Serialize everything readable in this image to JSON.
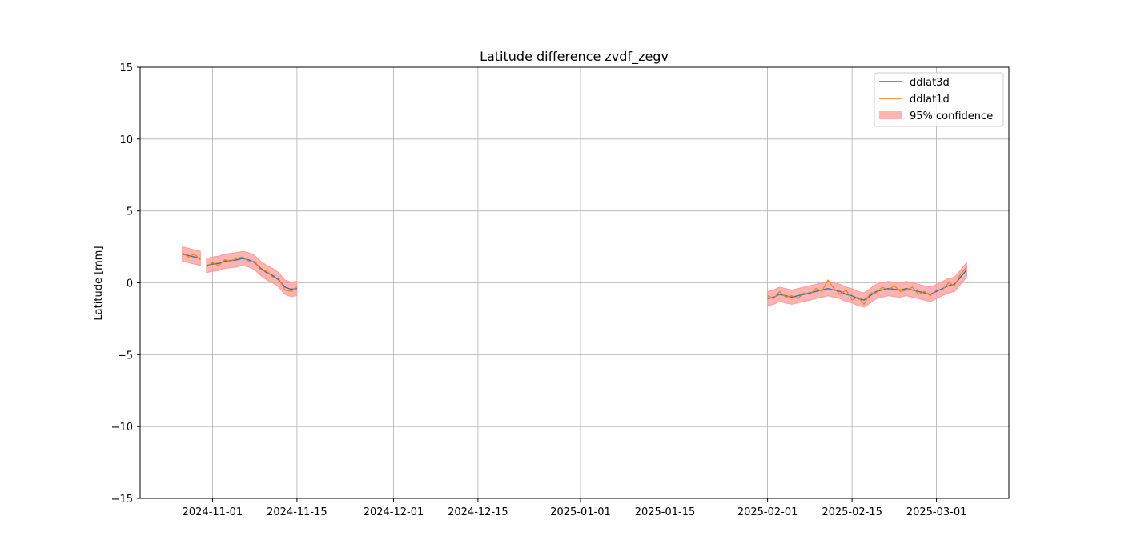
{
  "chart_data": {
    "type": "line",
    "title": "Latitude difference zvdf_zegv",
    "xlabel": "",
    "ylabel": "Latitude [mm]",
    "x_type": "date",
    "xlim": [
      "2024-10-20",
      "2025-03-13"
    ],
    "ylim": [
      -15,
      15
    ],
    "grid": true,
    "legend_position": "top-right",
    "x_ticks": [
      "2024-11-01",
      "2024-11-15",
      "2024-12-01",
      "2024-12-15",
      "2025-01-01",
      "2025-01-15",
      "2025-02-01",
      "2025-02-15",
      "2025-03-01"
    ],
    "y_ticks": [
      15,
      10,
      5,
      0,
      -5,
      -10,
      -15
    ],
    "y_tick_labels": [
      "15",
      "10",
      "5",
      "0",
      "−5",
      "−10",
      "−15"
    ],
    "colors": {
      "ddlat3d": "#1f77b4",
      "ddlat1d": "#ff7f0e",
      "confidence": "#ff9999"
    },
    "legend": [
      "ddlat3d",
      "ddlat1d",
      "95% confidence"
    ],
    "segments": [
      {
        "x": [
          "2024-10-27",
          "2024-10-28",
          "2024-10-29",
          "2024-10-30"
        ],
        "ddlat3d": [
          2.0,
          1.9,
          1.8,
          1.7
        ],
        "ddlat1d": [
          2.1,
          1.8,
          2.0,
          1.6
        ],
        "lower": [
          1.5,
          1.4,
          1.3,
          1.2
        ],
        "upper": [
          2.5,
          2.4,
          2.3,
          2.2
        ]
      },
      {
        "x": [
          "2024-10-31",
          "2024-11-01",
          "2024-11-02",
          "2024-11-03",
          "2024-11-04",
          "2024-11-05",
          "2024-11-06",
          "2024-11-07",
          "2024-11-08",
          "2024-11-09",
          "2024-11-10",
          "2024-11-11",
          "2024-11-12",
          "2024-11-13",
          "2024-11-14",
          "2024-11-15"
        ],
        "ddlat3d": [
          1.2,
          1.3,
          1.35,
          1.5,
          1.55,
          1.6,
          1.7,
          1.6,
          1.4,
          1.0,
          0.7,
          0.5,
          0.2,
          -0.3,
          -0.45,
          -0.4
        ],
        "ddlat1d": [
          1.1,
          1.4,
          1.2,
          1.6,
          1.5,
          1.7,
          1.8,
          1.5,
          1.5,
          0.9,
          0.8,
          0.4,
          0.3,
          -0.5,
          -0.6,
          -0.3
        ],
        "lower": [
          0.7,
          0.8,
          0.85,
          1.0,
          1.05,
          1.1,
          1.2,
          1.1,
          0.9,
          0.5,
          0.2,
          0.0,
          -0.3,
          -0.8,
          -0.95,
          -0.9
        ],
        "upper": [
          1.7,
          1.8,
          1.85,
          2.0,
          2.05,
          2.1,
          2.2,
          2.1,
          1.9,
          1.5,
          1.2,
          1.0,
          0.7,
          0.2,
          0.05,
          0.1
        ]
      },
      {
        "x": [
          "2025-02-01",
          "2025-02-02",
          "2025-02-03",
          "2025-02-04",
          "2025-02-05",
          "2025-02-06",
          "2025-02-07",
          "2025-02-08",
          "2025-02-09",
          "2025-02-10",
          "2025-02-11",
          "2025-02-12",
          "2025-02-13",
          "2025-02-14",
          "2025-02-15",
          "2025-02-16",
          "2025-02-17",
          "2025-02-18",
          "2025-02-19",
          "2025-02-20",
          "2025-02-21",
          "2025-02-22",
          "2025-02-23",
          "2025-02-24",
          "2025-02-25",
          "2025-02-26",
          "2025-02-27",
          "2025-02-28",
          "2025-03-01",
          "2025-03-02",
          "2025-03-03",
          "2025-03-04",
          "2025-03-05",
          "2025-03-06"
        ],
        "ddlat3d": [
          -1.1,
          -1.0,
          -0.8,
          -0.9,
          -1.0,
          -0.9,
          -0.8,
          -0.7,
          -0.6,
          -0.5,
          -0.4,
          -0.5,
          -0.6,
          -0.8,
          -0.9,
          -1.1,
          -1.2,
          -0.9,
          -0.6,
          -0.5,
          -0.4,
          -0.45,
          -0.5,
          -0.4,
          -0.5,
          -0.6,
          -0.7,
          -0.8,
          -0.6,
          -0.4,
          -0.2,
          -0.1,
          0.4,
          0.9
        ],
        "ddlat1d": [
          -0.9,
          -1.1,
          -0.6,
          -1.0,
          -0.9,
          -1.1,
          -0.7,
          -0.8,
          -0.4,
          -0.6,
          0.2,
          -0.4,
          -0.8,
          -0.5,
          -1.2,
          -1.0,
          -1.5,
          -0.7,
          -0.7,
          -0.3,
          -0.5,
          -0.2,
          -0.6,
          -0.5,
          -0.3,
          -0.8,
          -0.6,
          -0.9,
          -0.5,
          -0.5,
          0.0,
          -0.2,
          0.6,
          1.1
        ],
        "lower": [
          -1.6,
          -1.5,
          -1.3,
          -1.4,
          -1.5,
          -1.4,
          -1.3,
          -1.2,
          -1.1,
          -1.0,
          -0.9,
          -1.0,
          -1.1,
          -1.3,
          -1.4,
          -1.6,
          -1.7,
          -1.4,
          -1.1,
          -1.0,
          -0.9,
          -0.95,
          -1.0,
          -0.9,
          -1.0,
          -1.1,
          -1.2,
          -1.3,
          -1.1,
          -0.9,
          -0.7,
          -0.6,
          -0.1,
          0.4
        ],
        "upper": [
          -0.6,
          -0.5,
          -0.3,
          -0.4,
          -0.5,
          -0.4,
          -0.3,
          -0.2,
          -0.1,
          0.0,
          0.1,
          0.0,
          -0.1,
          -0.3,
          -0.4,
          -0.6,
          -0.7,
          -0.4,
          -0.1,
          0.0,
          0.1,
          0.05,
          0.0,
          0.1,
          0.0,
          -0.1,
          -0.2,
          -0.3,
          -0.1,
          0.1,
          0.3,
          0.4,
          0.9,
          1.4
        ]
      }
    ]
  }
}
